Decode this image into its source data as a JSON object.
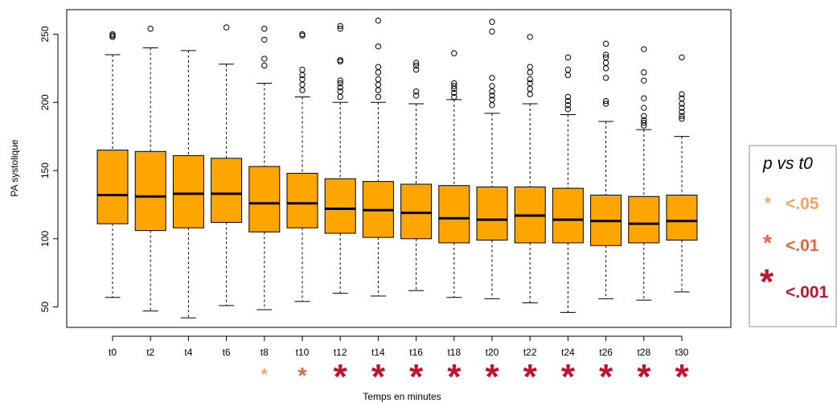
{
  "chart_data": {
    "type": "boxplot",
    "xlabel": "Temps en minutes",
    "ylabel": "PA systolique",
    "ylim": [
      35,
      268
    ],
    "yticks": [
      50,
      100,
      150,
      200,
      250
    ],
    "grid": false,
    "categories": [
      "t0",
      "t2",
      "t4",
      "t6",
      "t8",
      "t10",
      "t12",
      "t14",
      "t16",
      "t18",
      "t20",
      "t22",
      "t24",
      "t26",
      "t28",
      "t30"
    ],
    "boxes": [
      {
        "min": 57,
        "q1": 111,
        "median": 132,
        "q3": 165,
        "max": 235,
        "outliers": [
          248,
          249,
          250
        ]
      },
      {
        "min": 47,
        "q1": 106,
        "median": 131,
        "q3": 164,
        "max": 240,
        "outliers": [
          254
        ]
      },
      {
        "min": 42,
        "q1": 108,
        "median": 133,
        "q3": 161,
        "max": 238,
        "outliers": []
      },
      {
        "min": 51,
        "q1": 112,
        "median": 133,
        "q3": 159,
        "max": 228,
        "outliers": [
          255
        ]
      },
      {
        "min": 48,
        "q1": 105,
        "median": 126,
        "q3": 153,
        "max": 214,
        "outliers": [
          227,
          232,
          246,
          254
        ]
      },
      {
        "min": 54,
        "q1": 108,
        "median": 126,
        "q3": 148,
        "max": 204,
        "outliers": [
          209,
          213,
          217,
          220,
          224,
          249,
          250
        ]
      },
      {
        "min": 60,
        "q1": 104,
        "median": 122,
        "q3": 144,
        "max": 200,
        "outliers": [
          204,
          208,
          211,
          214,
          216,
          230,
          231,
          254,
          256
        ]
      },
      {
        "min": 58,
        "q1": 101,
        "median": 121,
        "q3": 142,
        "max": 200,
        "outliers": [
          204,
          209,
          213,
          217,
          222,
          226,
          241,
          260
        ]
      },
      {
        "min": 62,
        "q1": 100,
        "median": 119,
        "q3": 140,
        "max": 199,
        "outliers": [
          205,
          208,
          224,
          227,
          229
        ]
      },
      {
        "min": 57,
        "q1": 97,
        "median": 115,
        "q3": 139,
        "max": 202,
        "outliers": [
          204,
          207,
          210,
          212,
          214,
          236
        ]
      },
      {
        "min": 56,
        "q1": 99,
        "median": 114,
        "q3": 138,
        "max": 192,
        "outliers": [
          198,
          202,
          205,
          208,
          212,
          218,
          252,
          259
        ]
      },
      {
        "min": 53,
        "q1": 97,
        "median": 117,
        "q3": 138,
        "max": 199,
        "outliers": [
          206,
          210,
          214,
          217,
          222,
          226,
          248
        ]
      },
      {
        "min": 46,
        "q1": 97,
        "median": 114,
        "q3": 137,
        "max": 191,
        "outliers": [
          195,
          198,
          201,
          204,
          220,
          224,
          233
        ]
      },
      {
        "min": 56,
        "q1": 95,
        "median": 113,
        "q3": 132,
        "max": 186,
        "outliers": [
          199,
          201,
          218,
          225,
          229,
          233,
          235,
          243
        ]
      },
      {
        "min": 55,
        "q1": 97,
        "median": 111,
        "q3": 131,
        "max": 180,
        "outliers": [
          183,
          185,
          187,
          190,
          196,
          203,
          216,
          222,
          239
        ]
      },
      {
        "min": 61,
        "q1": 99,
        "median": 113,
        "q3": 132,
        "max": 175,
        "outliers": [
          188,
          190,
          193,
          196,
          199,
          203,
          206,
          233
        ]
      }
    ],
    "significance": [
      "",
      "",
      "",
      "",
      "<.05",
      "<.01",
      "<.001",
      "<.001",
      "<.001",
      "<.001",
      "<.001",
      "<.001",
      "<.001",
      "<.001",
      "<.001",
      "<.001"
    ],
    "box_color": "#FFA500"
  },
  "legend": {
    "title": "p vs t0",
    "entries": [
      {
        "label": "<.05",
        "color": "#F4A460"
      },
      {
        "label": "<.01",
        "color": "#E8643C"
      },
      {
        "label": "<.001",
        "color": "#C8102E"
      }
    ]
  }
}
